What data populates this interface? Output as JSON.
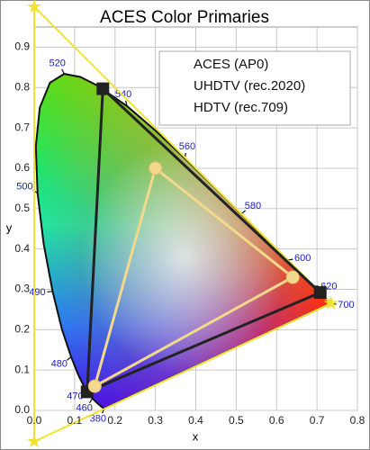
{
  "chart_data": {
    "type": "chromaticity",
    "title": "ACES Color Primaries",
    "x_label": "x",
    "y_label": "y",
    "xlim": [
      0,
      0.8
    ],
    "ylim": [
      0,
      0.95
    ],
    "xticks": [
      {
        "value": 0,
        "label": "0.0"
      },
      0.1,
      0.2,
      0.3,
      0.4,
      0.5,
      0.6,
      0.7,
      0.8
    ],
    "yticks": [
      {
        "value": 0,
        "label": "0.0"
      },
      0.1,
      0.2,
      0.3,
      0.4,
      0.5,
      0.6,
      0.7,
      0.8,
      0.9
    ],
    "grid": true,
    "legend": "upper right",
    "locus": {
      "x": [
        0.1741,
        0.1714,
        0.1644,
        0.1566,
        0.144,
        0.1355,
        0.1241,
        0.1096,
        0.0913,
        0.0687,
        0.0454,
        0.0235,
        0.0082,
        0.0039,
        0.0139,
        0.0389,
        0.0743,
        0.1142,
        0.1547,
        0.2296,
        0.3016,
        0.3731,
        0.4441,
        0.5125,
        0.5752,
        0.627,
        0.6658,
        0.6915,
        0.719,
        0.7347
      ],
      "y": [
        0.005,
        0.0051,
        0.0109,
        0.0177,
        0.0297,
        0.0399,
        0.0578,
        0.0868,
        0.1327,
        0.2007,
        0.295,
        0.4127,
        0.5384,
        0.6548,
        0.7502,
        0.812,
        0.8338,
        0.8262,
        0.8059,
        0.7543,
        0.6923,
        0.6245,
        0.5547,
        0.4866,
        0.4242,
        0.3725,
        0.334,
        0.3083,
        0.2809,
        0.2653
      ]
    },
    "wavelengths": {
      "values": [
        380,
        460,
        470,
        480,
        490,
        500,
        520,
        540,
        560,
        580,
        600,
        620,
        700
      ],
      "x": [
        0.1741,
        0.144,
        0.1241,
        0.0913,
        0.0454,
        0.0082,
        0.0743,
        0.2296,
        0.3731,
        0.5125,
        0.627,
        0.6915,
        0.7347
      ],
      "y": [
        0.005,
        0.0297,
        0.0578,
        0.1327,
        0.295,
        0.5384,
        0.8338,
        0.7543,
        0.6245,
        0.4866,
        0.3725,
        0.3083,
        0.2653
      ]
    },
    "series": [
      {
        "name": "ACES (AP0)",
        "color": "#f2e230",
        "marker": "star",
        "x": [
          0.7347,
          0.0,
          0.0001
        ],
        "y": [
          0.2653,
          1.0,
          -0.077
        ]
      },
      {
        "name": "UHDTV (rec.2020)",
        "color": "#222222",
        "marker": "square",
        "x": [
          0.708,
          0.17,
          0.131
        ],
        "y": [
          0.292,
          0.797,
          0.046
        ]
      },
      {
        "name": "HDTV (rec.709)",
        "color": "#f3d98c",
        "marker": "circle",
        "x": [
          0.64,
          0.3,
          0.15
        ],
        "y": [
          0.33,
          0.6,
          0.06
        ]
      }
    ]
  }
}
